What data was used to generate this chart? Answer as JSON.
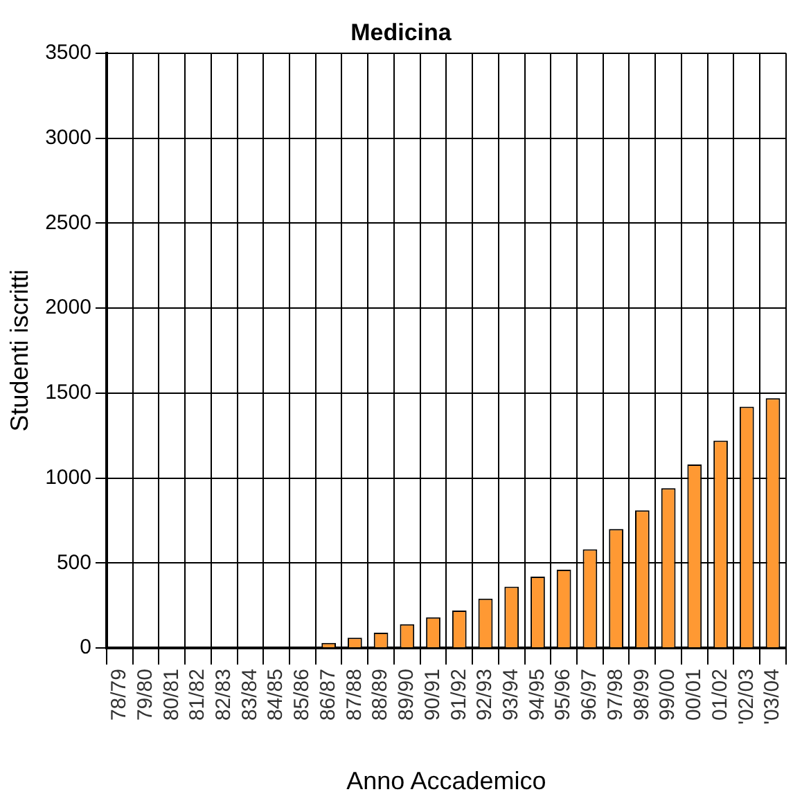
{
  "chart_data": {
    "type": "bar",
    "title": "Medicina",
    "xlabel": "Anno Accademico",
    "ylabel": "Studenti iscritti",
    "categories": [
      "78/79",
      "79/80",
      "80/81",
      "81/82",
      "82/83",
      "83/84",
      "84/85",
      "85/86",
      "86/87",
      "87/88",
      "88/89",
      "89/90",
      "90/91",
      "91/92",
      "92/93",
      "93/94",
      "94/95",
      "95/96",
      "96/97",
      "97/98",
      "98/99",
      "99/00",
      "00/01",
      "01/02",
      "'02/03",
      "'03/04"
    ],
    "values": [
      null,
      null,
      null,
      null,
      null,
      null,
      null,
      null,
      30,
      60,
      90,
      140,
      180,
      220,
      290,
      360,
      420,
      460,
      580,
      700,
      810,
      940,
      1080,
      1220,
      1420,
      1470
    ],
    "color": "#ff9933",
    "ylim": [
      0,
      3500
    ],
    "yticks": [
      0,
      500,
      1000,
      1500,
      2000,
      2500,
      3000,
      3500
    ],
    "grid": true
  }
}
